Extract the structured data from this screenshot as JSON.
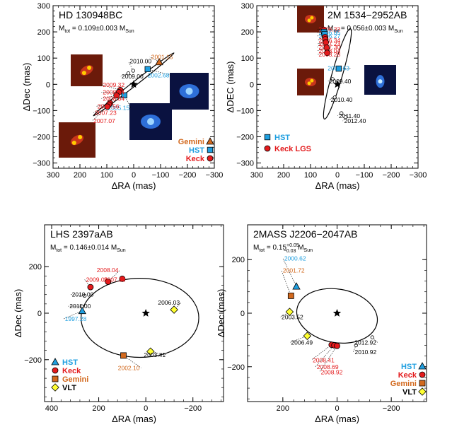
{
  "chart_data": [
    {
      "type": "scatter",
      "title": "HD 130948BC",
      "mass": {
        "base": "M",
        "sub": "tot",
        "text": " = 0.109±0.003 M",
        "unit_sub": "Sun"
      },
      "xlabel": "ΔRA (mas)",
      "ylabel": "ΔDec (mas)",
      "xlim": [
        300,
        -300
      ],
      "ylim": [
        -320,
        300
      ],
      "xticks": [
        300,
        200,
        100,
        0,
        -100,
        -200,
        -300
      ],
      "xtick_labels": [
        "300",
        "200",
        "100",
        "0",
        "−100",
        "−200",
        "−300"
      ],
      "yticks": [
        300,
        200,
        100,
        0,
        -100,
        -200,
        -300
      ],
      "ytick_labels": [
        "300",
        "200",
        "100",
        "0",
        "−100",
        "−200",
        "−300"
      ],
      "orbit": {
        "cx": 0,
        "cy": 0,
        "a": 190,
        "b": 8,
        "theta": 38
      },
      "points": [
        {
          "x": -95,
          "y": 85,
          "label": "2001.15",
          "set": "Gemini",
          "lx": -60,
          "ly": 105
        },
        {
          "x": 2,
          "y": 52,
          "label": "2010.00",
          "set": "open",
          "lx": 20,
          "ly": 88
        },
        {
          "x": 20,
          "y": 42,
          "label": "2009.00",
          "set": "open",
          "lx": 50,
          "ly": 30
        },
        {
          "x": -52,
          "y": 58,
          "label": "2002.68",
          "set": "HST",
          "lx": -138,
          "ly": 35
        },
        {
          "x": 35,
          "y": -42,
          "label": "2005.15",
          "set": "HST",
          "lx": 10,
          "ly": -90
        },
        {
          "x": 50,
          "y": -22,
          "label": "2009.32",
          "set": "Keck",
          "lx": 120,
          "ly": -2
        },
        {
          "x": 55,
          "y": -30,
          "label": "2008.24",
          "set": "Keck",
          "lx": 120,
          "ly": -30
        },
        {
          "x": 64,
          "y": -42,
          "label": "2008.04",
          "set": "Keck",
          "lx": 120,
          "ly": -54
        },
        {
          "x": 88,
          "y": -72,
          "label": "2007.56",
          "set": "Keck",
          "lx": 140,
          "ly": -84
        },
        {
          "x": 92,
          "y": -77,
          "label": "2007.23",
          "set": "Keck",
          "lx": 150,
          "ly": -108
        },
        {
          "x": 98,
          "y": -85,
          "label": "2007.07",
          "set": "Keck",
          "lx": 155,
          "ly": -140
        }
      ],
      "legend": [
        {
          "label": "Gemini",
          "set": "Gemini"
        },
        {
          "label": "HST",
          "set": "HST"
        },
        {
          "label": "Keck",
          "set": "Keck"
        }
      ],
      "legend_placement": "bottom-right",
      "insets": [
        "binary-image-1",
        "binary-image-2",
        "binary-image-3",
        "binary-image-4"
      ]
    },
    {
      "type": "scatter",
      "title": "2M 1534−2952AB",
      "mass": {
        "base": "M",
        "sub": "tot",
        "text": " = 0.056±0.003 M",
        "unit_sub": "Sun"
      },
      "xlabel": "ΔRA (mas)",
      "ylabel": "ΔDEC (mas)",
      "xlim": [
        300,
        -300
      ],
      "ylim": [
        -320,
        300
      ],
      "xticks": [
        300,
        200,
        100,
        0,
        -100,
        -200,
        -300
      ],
      "xtick_labels": [
        "300",
        "200",
        "100",
        "0",
        "−100",
        "−200",
        "−300"
      ],
      "yticks": [
        300,
        200,
        100,
        0,
        -100,
        -200,
        -300
      ],
      "ytick_labels": [
        "300",
        "200",
        "100",
        "0",
        "−100",
        "−200",
        "−300"
      ],
      "orbit": {
        "cx": 0,
        "cy": 40,
        "a": 175,
        "b": 20,
        "theta": 74
      },
      "points": [
        {
          "x": 50,
          "y": 208,
          "label": "2006.33",
          "set": "Keck",
          "lx": 75,
          "ly": 210
        },
        {
          "x": 50,
          "y": 200,
          "label": "2006.05",
          "set": "HST",
          "lx": 75,
          "ly": 197
        },
        {
          "x": 48,
          "y": 192,
          "label": "2006.27",
          "set": "HST",
          "lx": 75,
          "ly": 184
        },
        {
          "x": 46,
          "y": 180,
          "label": "2006.34",
          "set": "Keck",
          "lx": 75,
          "ly": 168
        },
        {
          "x": 45,
          "y": 172,
          "label": "2007.30",
          "set": "Keck",
          "lx": 75,
          "ly": 142
        },
        {
          "x": 43,
          "y": 160,
          "label": "2007.23",
          "set": "Keck",
          "lx": 75,
          "ly": 155
        },
        {
          "x": 40,
          "y": 140,
          "label": "2008.04",
          "set": "Keck",
          "lx": 75,
          "ly": 128
        },
        {
          "x": 38,
          "y": 120,
          "label": "2008.28",
          "set": "Keck",
          "lx": 75,
          "ly": 114
        },
        {
          "x": -5,
          "y": 60,
          "label": "2000.63",
          "set": "HST",
          "lx": -50,
          "ly": 62
        },
        {
          "x": 18,
          "y": 20,
          "label": "2009.40",
          "set": "open",
          "lx": 35,
          "ly": 12
        },
        {
          "x": 10,
          "y": -50,
          "label": "2010.40",
          "set": "open",
          "lx": 30,
          "ly": -58
        },
        {
          "x": -15,
          "y": -110,
          "label": "2011.40",
          "set": "open",
          "lx": 0,
          "ly": -120
        },
        {
          "x": -30,
          "y": -125,
          "label": "2012.40",
          "set": "open",
          "lx": -20,
          "ly": -140
        }
      ],
      "legend": [
        {
          "label": "HST",
          "set": "HST"
        },
        {
          "label": "Keck LGS",
          "set": "Keck"
        }
      ],
      "legend_placement": "bottom-left",
      "insets": [
        "binary-image-1",
        "binary-image-2",
        "binary-image-3"
      ]
    },
    {
      "type": "scatter",
      "title": "LHS 2397aAB",
      "mass": {
        "base": "M",
        "sub": "tot",
        "text": " = 0.146±0.014 M",
        "unit_sub": "Sun"
      },
      "xlabel": "ΔRA (mas)",
      "ylabel": "ΔDec (mas)",
      "xlim": [
        430,
        -330
      ],
      "ylim": [
        -380,
        380
      ],
      "xticks": [
        400,
        200,
        0,
        -200
      ],
      "xtick_labels": [
        "400",
        "200",
        "0",
        "−200"
      ],
      "yticks": [
        200,
        0,
        -200
      ],
      "ytick_labels": [
        "200",
        "0",
        "−200"
      ],
      "orbit": {
        "cx": 25,
        "cy": -20,
        "a": 250,
        "b": 170,
        "theta": 0
      },
      "points": [
        {
          "x": 270,
          "y": 10,
          "label": "1997.28",
          "set": "HST",
          "lx": 350,
          "ly": -25
        },
        {
          "x": 272,
          "y": 30,
          "label": "2011.00",
          "set": "open",
          "lx": 330,
          "ly": 30
        },
        {
          "x": 260,
          "y": 75,
          "label": "2010.00",
          "set": "open",
          "lx": 320,
          "ly": 80
        },
        {
          "x": 235,
          "y": 112,
          "label": "2009.06",
          "set": "Keck",
          "lx": 260,
          "ly": 145
        },
        {
          "x": 160,
          "y": 135,
          "label": "2008.04",
          "set": "Keck",
          "lx": 110,
          "ly": 185
        },
        {
          "x": 100,
          "y": 148,
          "label": "2007.30",
          "set": "Keck",
          "lx": 80,
          "ly": 145
        },
        {
          "x": -120,
          "y": 15,
          "label": "2006.03",
          "set": "VLT",
          "lx": -150,
          "ly": 45
        },
        {
          "x": -20,
          "y": -165,
          "label": "2003.41",
          "set": "VLT",
          "lx": -90,
          "ly": -180
        },
        {
          "x": 95,
          "y": -182,
          "label": "2002.10",
          "set": "Gemini",
          "lx": 20,
          "ly": -235
        }
      ],
      "legend": [
        {
          "label": "HST",
          "set": "HST"
        },
        {
          "label": "Keck",
          "set": "Keck"
        },
        {
          "label": "Gemini",
          "set": "Gemini"
        },
        {
          "label": "VLT",
          "set": "VLT"
        }
      ],
      "legend_placement": "bottom-left"
    },
    {
      "type": "scatter",
      "title": "2MASS J2206−2047AB",
      "mass": {
        "base": "M",
        "sub": "tot",
        "text": " = 0.15",
        "sup": "+0.05",
        "sub2": "−0.03",
        "unit": " M",
        "unit_sub": "Sun"
      },
      "xlabel": "ΔRA (mas)",
      "ylabel": "ΔDec (mas)",
      "xlim": [
        330,
        -330
      ],
      "ylim": [
        -330,
        330
      ],
      "xticks": [
        200,
        0,
        -200
      ],
      "xtick_labels": [
        "200",
        "0",
        "−200"
      ],
      "yticks": [
        200,
        0,
        -200
      ],
      "ytick_labels": [
        "200",
        "0",
        "−200"
      ],
      "orbit": {
        "cx": 0,
        "cy": -10,
        "a": 150,
        "b": 100,
        "theta": -10
      },
      "points": [
        {
          "x": 150,
          "y": 100,
          "label": "2000.62",
          "set": "HST",
          "lx": 200,
          "ly": 205
        },
        {
          "x": 170,
          "y": 65,
          "label": "2001.72",
          "set": "Gemini",
          "lx": 205,
          "ly": 160
        },
        {
          "x": 175,
          "y": 5,
          "label": "2003.52",
          "set": "VLT",
          "lx": 210,
          "ly": -15
        },
        {
          "x": 110,
          "y": -85,
          "label": "2006.49",
          "set": "VLT",
          "lx": 175,
          "ly": -110
        },
        {
          "x": 20,
          "y": -118,
          "label": "2008.41",
          "set": "Keck",
          "lx": 95,
          "ly": -175
        },
        {
          "x": 10,
          "y": -120,
          "label": "2008.69",
          "set": "Keck",
          "lx": 80,
          "ly": -200
        },
        {
          "x": 0,
          "y": -122,
          "label": "2008.92",
          "set": "Keck",
          "lx": 65,
          "ly": -220
        },
        {
          "x": -70,
          "y": -120,
          "label": "2010.92",
          "set": "open",
          "lx": -60,
          "ly": -145
        },
        {
          "x": -130,
          "y": -90,
          "label": "2012.92",
          "set": "open",
          "lx": -150,
          "ly": -110
        }
      ],
      "legend": [
        {
          "label": "HST",
          "set": "HST"
        },
        {
          "label": "Keck",
          "set": "Keck"
        },
        {
          "label": "Gemini",
          "set": "Gemini"
        },
        {
          "label": "VLT",
          "set": "VLT"
        }
      ],
      "legend_placement": "bottom-right"
    }
  ],
  "colors": {
    "Keck": "#e31a1c",
    "HST": "#1f9fe0",
    "Gemini": "#d2691e",
    "VLT": "#ffff33",
    "open": "#ffffff",
    "text_black": "#000000"
  },
  "icons": {
    "center": "star-icon"
  }
}
